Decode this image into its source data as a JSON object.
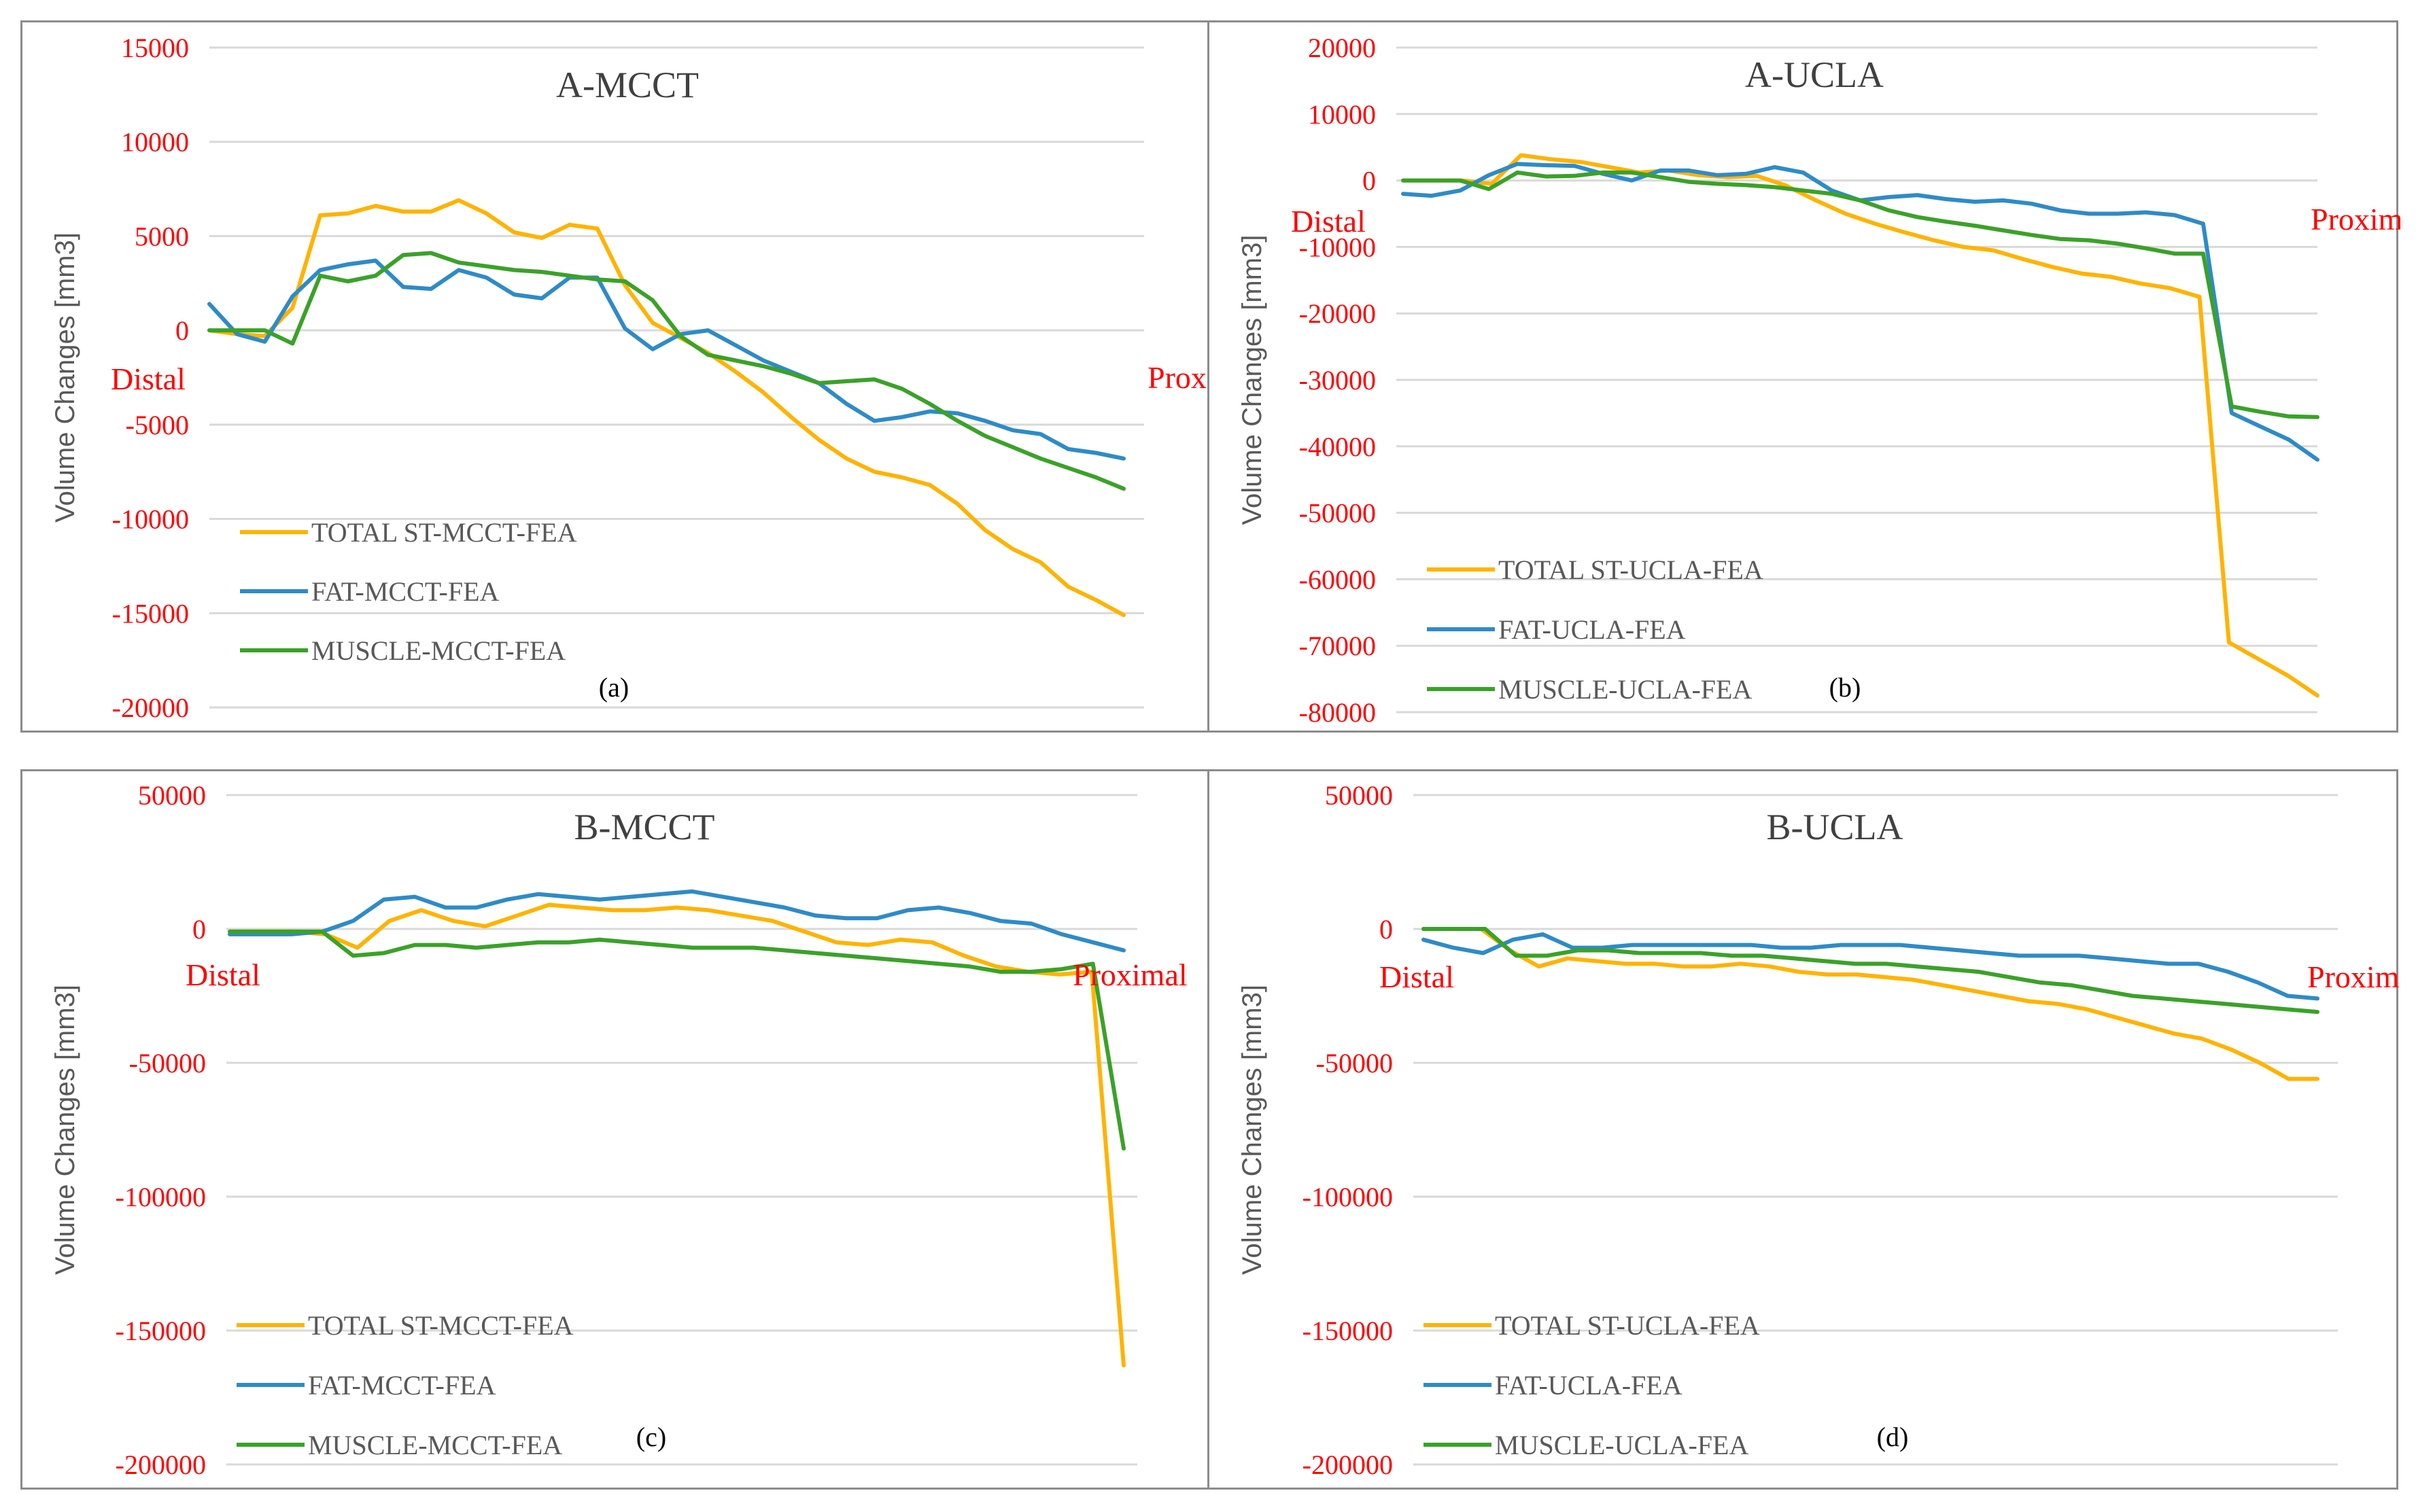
{
  "style": {
    "series_colors": [
      "#FFB300",
      "#2E8BC7",
      "#3AA228"
    ],
    "tick_color": "#FF0000",
    "distal_proximal_color": "#FF0000",
    "title_color": "#404040",
    "ylabel_color": "#595959",
    "legend_color": "#595959",
    "grid_color": "#D9D9D9"
  },
  "chart_data": [
    {
      "type": "line",
      "title": "A-MCCT",
      "ylabel": "Volume Changes [mm3]",
      "sublabel": "(a)",
      "distal_label": "Distal",
      "proximal_label": "Proximal",
      "ylim": [
        -20000,
        15000
      ],
      "ytick_values": [
        15000,
        10000,
        5000,
        0,
        -5000,
        -10000,
        -15000,
        -20000
      ],
      "yticks": [
        "15000",
        "10000",
        "5000",
        "0",
        "-5000",
        "-10000",
        "-15000",
        "-20000"
      ],
      "series": [
        {
          "name": "TOTAL ST-MCCT-FEA",
          "values": [
            0,
            -200,
            -300,
            1200,
            6100,
            6200,
            6600,
            6300,
            6300,
            6900,
            6200,
            5200,
            4900,
            5600,
            5400,
            2400,
            400,
            -400,
            -1200,
            -2200,
            -3300,
            -4600,
            -5800,
            -6800,
            -7500,
            -7800,
            -8200,
            -9200,
            -10600,
            -11600,
            -12300,
            -13600,
            -14300,
            -15100
          ]
        },
        {
          "name": "FAT-MCCT-FEA",
          "values": [
            1400,
            -200,
            -600,
            1800,
            3200,
            3500,
            3700,
            2300,
            2200,
            3200,
            2800,
            1900,
            1700,
            2800,
            2800,
            100,
            -1000,
            -200,
            0,
            -800,
            -1600,
            -2200,
            -2800,
            -3900,
            -4800,
            -4600,
            -4300,
            -4400,
            -4800,
            -5300,
            -5500,
            -6300,
            -6500,
            -6800
          ]
        },
        {
          "name": "MUSCLE-MCCT-FEA",
          "values": [
            0,
            0,
            0,
            -700,
            2900,
            2600,
            2900,
            4000,
            4100,
            3600,
            3400,
            3200,
            3100,
            2900,
            2700,
            2600,
            1600,
            -300,
            -1300,
            -1600,
            -1900,
            -2300,
            -2800,
            -2700,
            -2600,
            -3100,
            -3900,
            -4800,
            -5600,
            -6200,
            -6800,
            -7300,
            -7800,
            -8400
          ]
        }
      ]
    },
    {
      "type": "line",
      "title": "A-UCLA",
      "ylabel": "Volume Changes [mm3]",
      "sublabel": "(b)",
      "distal_label": "Distal",
      "proximal_label": "Proximal",
      "ylim": [
        -80000,
        20000
      ],
      "ytick_values": [
        20000,
        10000,
        0,
        -10000,
        -20000,
        -30000,
        -40000,
        -50000,
        -60000,
        -70000,
        -80000
      ],
      "yticks": [
        "20000",
        "10000",
        "0",
        "-10000",
        "-20000",
        "-30000",
        "-40000",
        "-50000",
        "-60000",
        "-70000",
        "-80000"
      ],
      "series": [
        {
          "name": "TOTAL ST-UCLA-FEA",
          "values": [
            0,
            0,
            0,
            -500,
            3800,
            3200,
            2800,
            2000,
            1200,
            1500,
            800,
            500,
            700,
            -800,
            -3000,
            -5000,
            -6500,
            -7800,
            -9000,
            -10000,
            -10500,
            -11800,
            -13000,
            -14000,
            -14500,
            -15500,
            -16200,
            -17500,
            -69500,
            -72000,
            -74500,
            -77500
          ]
        },
        {
          "name": "FAT-UCLA-FEA",
          "values": [
            -2000,
            -2300,
            -1500,
            800,
            2500,
            2300,
            2200,
            1000,
            0,
            1500,
            1500,
            800,
            1000,
            2000,
            1200,
            -1500,
            -3000,
            -2500,
            -2200,
            -2800,
            -3200,
            -3000,
            -3500,
            -4500,
            -5000,
            -5000,
            -4800,
            -5200,
            -6500,
            -35000,
            -37000,
            -39000,
            -42000
          ]
        },
        {
          "name": "MUSCLE-UCLA-FEA",
          "values": [
            0,
            0,
            0,
            -1300,
            1200,
            600,
            700,
            1200,
            1200,
            500,
            -200,
            -500,
            -700,
            -1000,
            -1500,
            -2000,
            -3000,
            -4500,
            -5500,
            -6200,
            -6800,
            -7500,
            -8200,
            -8800,
            -9000,
            -9500,
            -10200,
            -11000,
            -11000,
            -34000,
            -34800,
            -35500,
            -35600
          ]
        }
      ]
    },
    {
      "type": "line",
      "title": "B-MCCT",
      "ylabel": "Volume Changes [mm3]",
      "sublabel": "(c)",
      "distal_label": "Distal",
      "proximal_label": "Proximal",
      "ylim": [
        -200000,
        50000
      ],
      "ytick_values": [
        50000,
        0,
        -50000,
        -100000,
        -150000,
        -200000
      ],
      "yticks": [
        "50000",
        "0",
        "-50000",
        "-100000",
        "-150000",
        "-200000"
      ],
      "series": [
        {
          "name": "TOTAL ST-MCCT-FEA",
          "values": [
            -1000,
            -1000,
            -1000,
            -2000,
            -7000,
            3000,
            7000,
            3000,
            1000,
            5000,
            9000,
            8000,
            7000,
            7000,
            8000,
            7000,
            5000,
            3000,
            -1000,
            -5000,
            -6000,
            -4000,
            -5000,
            -10000,
            -14000,
            -16000,
            -17000,
            -16000,
            -163000
          ]
        },
        {
          "name": "FAT-MCCT-FEA",
          "values": [
            -2000,
            -2000,
            -2000,
            -1000,
            3000,
            11000,
            12000,
            8000,
            8000,
            11000,
            13000,
            12000,
            11000,
            12000,
            13000,
            14000,
            12000,
            10000,
            8000,
            5000,
            4000,
            4000,
            7000,
            8000,
            6000,
            3000,
            2000,
            -2000,
            -5000,
            -8000
          ]
        },
        {
          "name": "MUSCLE-MCCT-FEA",
          "values": [
            -1000,
            -1000,
            -1000,
            -1000,
            -10000,
            -9000,
            -6000,
            -6000,
            -7000,
            -6000,
            -5000,
            -5000,
            -4000,
            -5000,
            -6000,
            -7000,
            -7000,
            -7000,
            -8000,
            -9000,
            -10000,
            -11000,
            -12000,
            -13000,
            -14000,
            -16000,
            -16000,
            -15000,
            -13000,
            -82000
          ]
        }
      ]
    },
    {
      "type": "line",
      "title": "B-UCLA",
      "ylabel": "Volume Changes [mm3]",
      "sublabel": "(d)",
      "distal_label": "Distal",
      "proximal_label": "Proximal",
      "ylim": [
        -200000,
        50000
      ],
      "ytick_values": [
        50000,
        0,
        -50000,
        -100000,
        -150000,
        -200000
      ],
      "yticks": [
        "50000",
        "0",
        "-50000",
        "-100000",
        "-150000",
        "-200000"
      ],
      "series": [
        {
          "name": "TOTAL ST-UCLA-FEA",
          "values": [
            0,
            0,
            0,
            -8000,
            -14000,
            -11000,
            -12000,
            -13000,
            -13000,
            -14000,
            -14000,
            -13000,
            -14000,
            -16000,
            -17000,
            -17000,
            -18000,
            -19000,
            -21000,
            -23000,
            -25000,
            -27000,
            -28000,
            -30000,
            -33000,
            -36000,
            -39000,
            -41000,
            -45000,
            -50000,
            -56000,
            -56000
          ]
        },
        {
          "name": "FAT-UCLA-FEA",
          "values": [
            -4000,
            -7000,
            -9000,
            -4000,
            -2000,
            -7000,
            -7000,
            -6000,
            -6000,
            -6000,
            -6000,
            -6000,
            -7000,
            -7000,
            -6000,
            -6000,
            -6000,
            -7000,
            -8000,
            -9000,
            -10000,
            -10000,
            -10000,
            -11000,
            -12000,
            -13000,
            -13000,
            -16000,
            -20000,
            -25000,
            -26000
          ]
        },
        {
          "name": "MUSCLE-UCLA-FEA",
          "values": [
            0,
            0,
            0,
            -10000,
            -10000,
            -8000,
            -8000,
            -9000,
            -9000,
            -9000,
            -10000,
            -10000,
            -11000,
            -12000,
            -13000,
            -13000,
            -14000,
            -15000,
            -16000,
            -18000,
            -20000,
            -21000,
            -23000,
            -25000,
            -26000,
            -27000,
            -28000,
            -29000,
            -30000,
            -31000
          ]
        }
      ]
    }
  ]
}
